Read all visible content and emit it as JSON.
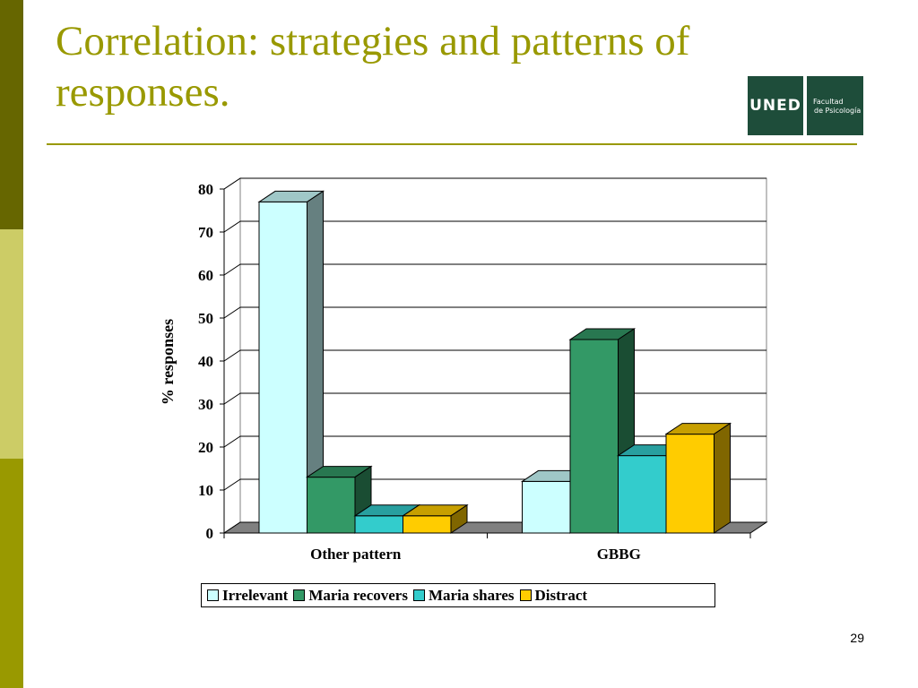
{
  "slide": {
    "title": "Correlation: strategies and patterns of responses.",
    "page_number": "29",
    "logo": {
      "left_text": "UNED",
      "right_line1": "Facultad",
      "right_line2": "de Psicología"
    }
  },
  "colors": {
    "sidebar_top": "#666600",
    "sidebar_mid": "#cccc66",
    "sidebar_bottom": "#999900",
    "title": "#999900",
    "logo_bg": "#1e4d3a"
  },
  "chart_data": {
    "type": "bar",
    "three_d": true,
    "title": "",
    "xlabel": "",
    "ylabel": "% responses",
    "ylim": [
      0,
      80
    ],
    "yticks": [
      0,
      10,
      20,
      30,
      40,
      50,
      60,
      70,
      80
    ],
    "grid": true,
    "legend_position": "bottom",
    "categories": [
      "Other pattern",
      "GBBG"
    ],
    "series": [
      {
        "name": "Irrelevant",
        "values": [
          77,
          12
        ],
        "color": "#ccffff"
      },
      {
        "name": "Maria recovers",
        "values": [
          13,
          45
        ],
        "color": "#339966"
      },
      {
        "name": "Maria shares",
        "values": [
          4,
          18
        ],
        "color": "#33cccc"
      },
      {
        "name": "Distract",
        "values": [
          4,
          23
        ],
        "color": "#ffcc00"
      }
    ]
  }
}
